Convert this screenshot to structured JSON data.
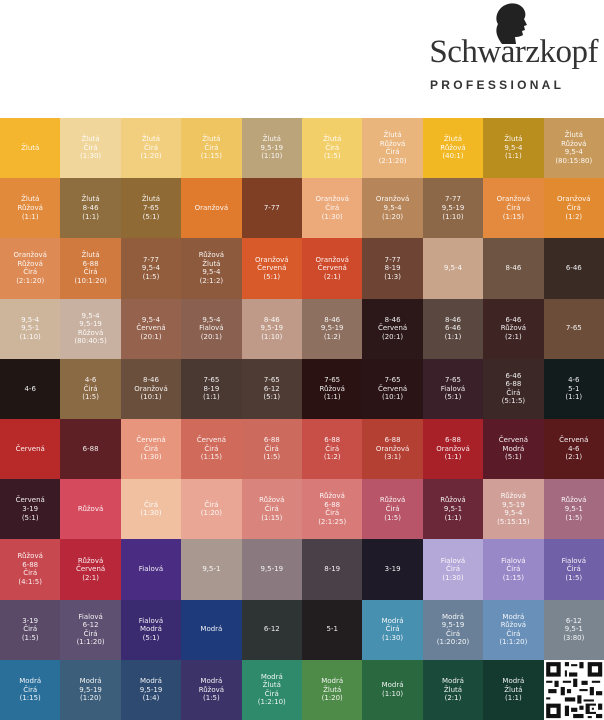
{
  "brand": {
    "name": "Schwarzkopf",
    "tagline": "PROFESSIONAL"
  },
  "swatches": [
    [
      {
        "lines": [
          "Žlutá"
        ],
        "color": "#f4b52f"
      },
      {
        "lines": [
          "Žlutá",
          "Čirá",
          "(1:30)"
        ],
        "color": "#f0d69a"
      },
      {
        "lines": [
          "Žlutá",
          "Čirá",
          "(1:20)"
        ],
        "color": "#f2cf7e"
      },
      {
        "lines": [
          "Žlutá",
          "Čirá",
          "(1:15)"
        ],
        "color": "#eec560"
      },
      {
        "lines": [
          "Žlutá",
          "9,5-19",
          "(1:10)"
        ],
        "color": "#bba37a"
      },
      {
        "lines": [
          "Žlutá",
          "Čirá",
          "(1:5)"
        ],
        "color": "#f3cf6a"
      },
      {
        "lines": [
          "Žlutá",
          "Růžová",
          "Čirá",
          "(2:1:20)"
        ],
        "color": "#e9b57c"
      },
      {
        "lines": [
          "Žlutá",
          "Růžová",
          "(40:1)"
        ],
        "color": "#f2b823"
      },
      {
        "lines": [
          "Žlutá",
          "9,5-4",
          "(1:1)"
        ],
        "color": "#b98d1e"
      },
      {
        "lines": [
          "Žlutá",
          "Růžová",
          "9,5-4",
          "(80:15:80)"
        ],
        "color": "#c79a5b"
      }
    ],
    [
      {
        "lines": [
          "Žlutá",
          "Růžová",
          "(1:1)"
        ],
        "color": "#e28a3b"
      },
      {
        "lines": [
          "Žlutá",
          "8-46",
          "(1:1)"
        ],
        "color": "#8e6d3e"
      },
      {
        "lines": [
          "Žlutá",
          "7-65",
          "(5:1)"
        ],
        "color": "#8f6a35"
      },
      {
        "lines": [
          "Oranžová"
        ],
        "color": "#e07a2d"
      },
      {
        "lines": [
          "7-77"
        ],
        "color": "#7e3f25"
      },
      {
        "lines": [
          "Oranžová",
          "Čirá",
          "(1:30)"
        ],
        "color": "#eca97a"
      },
      {
        "lines": [
          "Oranžová",
          "9,5-4",
          "(1:20)"
        ],
        "color": "#b7855a"
      },
      {
        "lines": [
          "7-77",
          "9,5-19",
          "(1:10)"
        ],
        "color": "#8d6848"
      },
      {
        "lines": [
          "Oranžová",
          "Čirá",
          "(1:15)"
        ],
        "color": "#e48a3e"
      },
      {
        "lines": [
          "Oranžová",
          "Čirá",
          "(1:2)"
        ],
        "color": "#e28a30"
      }
    ],
    [
      {
        "lines": [
          "Oranžová",
          "Růžová",
          "Čirá",
          "(2:1:20)"
        ],
        "color": "#dd8a55"
      },
      {
        "lines": [
          "Žlutá",
          "6-88",
          "Čirá",
          "(10:1:20)"
        ],
        "color": "#d07a40"
      },
      {
        "lines": [
          "7-77",
          "9,5-4",
          "(1:5)"
        ],
        "color": "#915d3c"
      },
      {
        "lines": [
          "Růžová",
          "Žlutá",
          "9,5-4",
          "(2:1:2)"
        ],
        "color": "#8e5a3e"
      },
      {
        "lines": [
          "Oranžová",
          "Červená",
          "(5:1)"
        ],
        "color": "#d85a2a"
      },
      {
        "lines": [
          "Oranžová",
          "Červená",
          "(2:1)"
        ],
        "color": "#cf4a2b"
      },
      {
        "lines": [
          "7-77",
          "8-19",
          "(1:3)"
        ],
        "color": "#6e4535"
      },
      {
        "lines": [
          "9,5-4"
        ],
        "color": "#c8a48b"
      },
      {
        "lines": [
          "8-46"
        ],
        "color": "#6e5443"
      },
      {
        "lines": [
          "6-46"
        ],
        "color": "#3a2b24"
      }
    ],
    [
      {
        "lines": [
          "9,5-4",
          "9,5-1",
          "(1:10)"
        ],
        "color": "#cdb59c"
      },
      {
        "lines": [
          "9,5-4",
          "9,5-19",
          "Růžová",
          "(80:40:5)"
        ],
        "color": "#c8b1a0"
      },
      {
        "lines": [
          "9,5-4",
          "Červená",
          "(20:1)"
        ],
        "color": "#95624d"
      },
      {
        "lines": [
          "9,5-4",
          "Fialová",
          "(20:1)"
        ],
        "color": "#8a6050"
      },
      {
        "lines": [
          "8-46",
          "9,5-19",
          "(1:10)"
        ],
        "color": "#c09a88"
      },
      {
        "lines": [
          "8-46",
          "9,5-19",
          "(1:2)"
        ],
        "color": "#8e7061"
      },
      {
        "lines": [
          "8-46",
          "Červená",
          "(20:1)"
        ],
        "color": "#2c1818"
      },
      {
        "lines": [
          "8-46",
          "6-46",
          "(1:1)"
        ],
        "color": "#5a4840"
      },
      {
        "lines": [
          "6-46",
          "Růžová",
          "(2:1)"
        ],
        "color": "#3e2524"
      },
      {
        "lines": [
          "7-65"
        ],
        "color": "#6b4d3a"
      }
    ],
    [
      {
        "lines": [
          "4-6"
        ],
        "color": "#201714"
      },
      {
        "lines": [
          "4-6",
          "Čirá",
          "(1:5)"
        ],
        "color": "#8a6945"
      },
      {
        "lines": [
          "8-46",
          "Oranžová",
          "(10:1)"
        ],
        "color": "#6b4f3d"
      },
      {
        "lines": [
          "7-65",
          "8-19",
          "(1:1)"
        ],
        "color": "#4a3833"
      },
      {
        "lines": [
          "7-65",
          "6-12",
          "(5:1)"
        ],
        "color": "#4e3b34"
      },
      {
        "lines": [
          "7-65",
          "Růžová",
          "(1:1)"
        ],
        "color": "#2a1212"
      },
      {
        "lines": [
          "7-65",
          "Červená",
          "(10:1)"
        ],
        "color": "#2a1416"
      },
      {
        "lines": [
          "7-65",
          "Fialová",
          "(5:1)"
        ],
        "color": "#3a2028"
      },
      {
        "lines": [
          "6-46",
          "6-88",
          "Čirá",
          "(5:1:5)"
        ],
        "color": "#3d2828"
      },
      {
        "lines": [
          "4-6",
          "5-1",
          "(1:1)"
        ],
        "color": "#131c1c"
      }
    ],
    [
      {
        "lines": [
          "Červená"
        ],
        "color": "#b82a2a"
      },
      {
        "lines": [
          "6-88"
        ],
        "color": "#5e2024"
      },
      {
        "lines": [
          "Červená",
          "Čirá",
          "(1:30)"
        ],
        "color": "#e8957d"
      },
      {
        "lines": [
          "Červená",
          "Čirá",
          "(1:15)"
        ],
        "color": "#d06a5a"
      },
      {
        "lines": [
          "6-88",
          "Čirá",
          "(1:5)"
        ],
        "color": "#cc6a5e"
      },
      {
        "lines": [
          "6-88",
          "Čirá",
          "(1:2)"
        ],
        "color": "#c84e48"
      },
      {
        "lines": [
          "6-88",
          "Oranžová",
          "(3:1)"
        ],
        "color": "#b44034"
      },
      {
        "lines": [
          "6-88",
          "Oranžová",
          "(1:1)"
        ],
        "color": "#a82028"
      },
      {
        "lines": [
          "Červená",
          "Modrá",
          "(5:1)"
        ],
        "color": "#5a1a28"
      },
      {
        "lines": [
          "Červená",
          "4-6",
          "(2:1)"
        ],
        "color": "#5a1a1c"
      }
    ],
    [
      {
        "lines": [
          "Červená",
          "3-19",
          "(5:1)"
        ],
        "color": "#3a1a24"
      },
      {
        "lines": [
          "Růžová"
        ],
        "color": "#d64a5e"
      },
      {
        "lines": [
          "Čirá",
          "(1:30)"
        ],
        "color": "#f0c0a0"
      },
      {
        "lines": [
          "Čirá",
          "(1:20)"
        ],
        "color": "#e9a695"
      },
      {
        "lines": [
          "Růžová",
          "Čirá",
          "(1:15)"
        ],
        "color": "#d9857d"
      },
      {
        "lines": [
          "Růžová",
          "6-88",
          "Čirá",
          "(2:1:25)"
        ],
        "color": "#d87a78"
      },
      {
        "lines": [
          "Růžová",
          "Čirá",
          "(1:5)"
        ],
        "color": "#b85568"
      },
      {
        "lines": [
          "Růžová",
          "9,5-1",
          "(1:1)"
        ],
        "color": "#6a2838"
      },
      {
        "lines": [
          "Růžová",
          "9,5-19",
          "9,5-4",
          "(5:15:15)"
        ],
        "color": "#d0a098"
      },
      {
        "lines": [
          "Růžová",
          "9,5-1",
          "(1:5)"
        ],
        "color": "#a36a80"
      }
    ],
    [
      {
        "lines": [
          "Růžová",
          "6-88",
          "Čirá",
          "(4:1:5)"
        ],
        "color": "#c7484e"
      },
      {
        "lines": [
          "Růžová",
          "Červená",
          "(2:1)"
        ],
        "color": "#b8283a"
      },
      {
        "lines": [
          "Fialová"
        ],
        "color": "#4a2c82"
      },
      {
        "lines": [
          "9,5-1"
        ],
        "color": "#a89890"
      },
      {
        "lines": [
          "9,5-19"
        ],
        "color": "#8a7a80"
      },
      {
        "lines": [
          "8-19"
        ],
        "color": "#4a4048"
      },
      {
        "lines": [
          "3-19"
        ],
        "color": "#1e1a28"
      },
      {
        "lines": [
          "Fialová",
          "Čirá",
          "(1:30)"
        ],
        "color": "#b4a8d8"
      },
      {
        "lines": [
          "Fialová",
          "Čirá",
          "(1:15)"
        ],
        "color": "#9888c8"
      },
      {
        "lines": [
          "Fialová",
          "Čirá",
          "(1:5)"
        ],
        "color": "#7060a8"
      }
    ],
    [
      {
        "lines": [
          "3-19",
          "Čirá",
          "(1:5)"
        ],
        "color": "#5a4a68"
      },
      {
        "lines": [
          "Fialová",
          "6-12",
          "Čirá",
          "(1:1:20)"
        ],
        "color": "#5e5070"
      },
      {
        "lines": [
          "Fialová",
          "Modrá",
          "(5:1)"
        ],
        "color": "#3a2a70"
      },
      {
        "lines": [
          "Modrá"
        ],
        "color": "#1e3a7a"
      },
      {
        "lines": [
          "6-12"
        ],
        "color": "#2e3434"
      },
      {
        "lines": [
          "5-1"
        ],
        "color": "#221e20"
      },
      {
        "lines": [
          "Modrá",
          "Čirá",
          "(1:30)"
        ],
        "color": "#4890b0"
      },
      {
        "lines": [
          "Modrá",
          "9,5-19",
          "Čirá",
          "(1:20:20)"
        ],
        "color": "#6a8098"
      },
      {
        "lines": [
          "Modrá",
          "Růžová",
          "Čirá",
          "(1:1:20)"
        ],
        "color": "#6890b8"
      },
      {
        "lines": [
          "6-12",
          "9,5-1",
          "(3:80)"
        ],
        "color": "#7a8590"
      }
    ],
    [
      {
        "lines": [
          "Modrá",
          "Čirá",
          "(1:15)"
        ],
        "color": "#2a6e9a"
      },
      {
        "lines": [
          "Modrá",
          "9,5-19",
          "(1:20)"
        ],
        "color": "#3c5e7a"
      },
      {
        "lines": [
          "Modrá",
          "9,5-19",
          "(1:4)"
        ],
        "color": "#2e4a70"
      },
      {
        "lines": [
          "Modrá",
          "Růžová",
          "(1:5)"
        ],
        "color": "#3c3468"
      },
      {
        "lines": [
          "Modrá",
          "Žlutá",
          "Čirá",
          "(1:2:10)"
        ],
        "color": "#2e8a6a"
      },
      {
        "lines": [
          "Modrá",
          "Žlutá",
          "(1:20)"
        ],
        "color": "#4e8a48"
      },
      {
        "lines": [
          "Modrá",
          "(1:10)"
        ],
        "color": "#2a6840"
      },
      {
        "lines": [
          "Modrá",
          "Žlutá",
          "(2:1)"
        ],
        "color": "#1a4a3a"
      },
      {
        "lines": [
          "Modrá",
          "Žlutá",
          "(1:1)"
        ],
        "color": "#143a30"
      }
    ]
  ]
}
